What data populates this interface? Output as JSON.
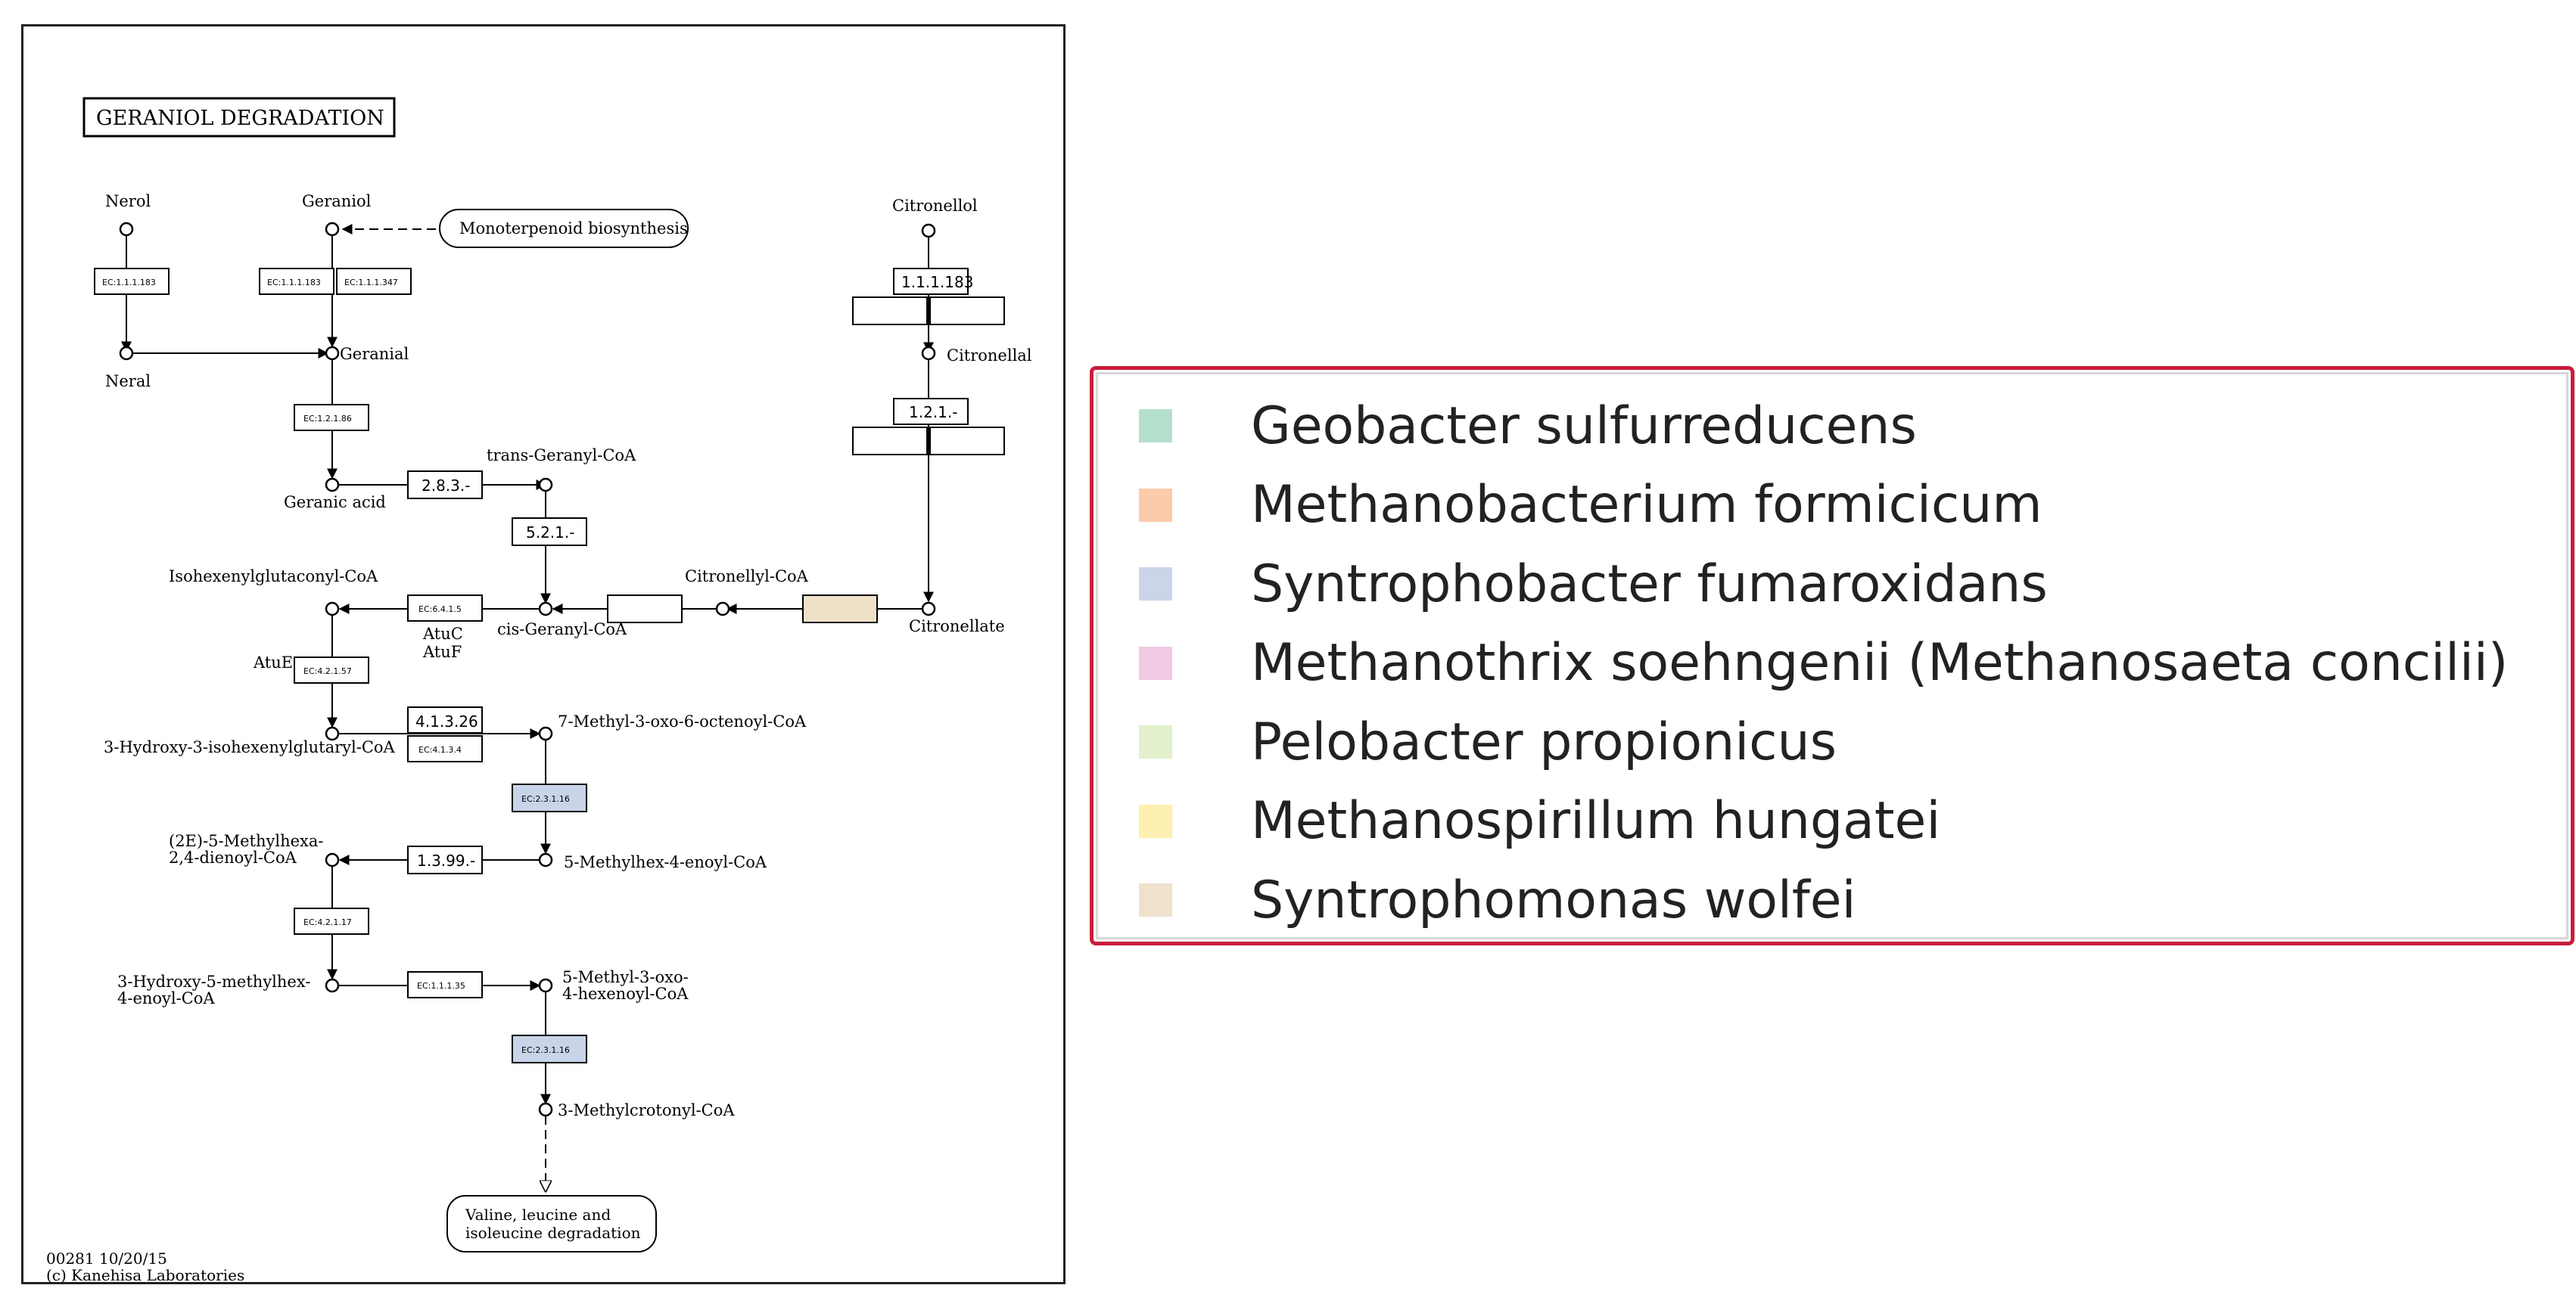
{
  "diagram": {
    "title": "GERANIOL DEGRADATION",
    "footer_line1": "00281 10/20/15",
    "footer_line2": "(c) Kanehisa Laboratories",
    "compounds": {
      "nerol": "Nerol",
      "geraniol": "Geraniol",
      "citronellol": "Citronellol",
      "neral": "Neral",
      "geranial": "Geranial",
      "citronellal": "Citronellal",
      "geranic_acid": "Geranic acid",
      "trans_geranyl_coa": "trans-Geranyl-CoA",
      "isohexenylglutaconyl_coa": "Isohexenylglutaconyl-CoA",
      "citronellyl_coa": "Citronellyl-CoA",
      "cis_geranyl_coa": "cis-Geranyl-CoA",
      "citronellate": "Citronellate",
      "hydroxy_isohexenylglutaryl_coa": "3-Hydroxy-3-isohexenylglutaryl-CoA",
      "methyl_oxo_octenoyl_coa": "7-Methyl-3-oxo-6-octenoyl-CoA",
      "methylhexadienoyl_coa_1": "(2E)-5-Methylhexa-",
      "methylhexadienoyl_coa_2": "2,4-dienoyl-CoA",
      "methylhex_enoyl_coa": "5-Methylhex-4-enoyl-CoA",
      "hydroxy_methylhex_1": "3-Hydroxy-5-methylhex-",
      "hydroxy_methylhex_2": "4-enoyl-CoA",
      "methyl_oxo_hexenoyl_1": "5-Methyl-3-oxo-",
      "methyl_oxo_hexenoyl_2": "4-hexenoyl-CoA",
      "methylcrotonyl_coa": "3-Methylcrotonyl-CoA"
    },
    "gene_labels": {
      "atuc": "AtuC",
      "atuf": "AtuF",
      "atue": "AtuE"
    },
    "pathway_maps": {
      "monoterpenoid": "Monoterpenoid biosynthesis",
      "valine_1": "Valine, leucine and",
      "valine_2": "isoleucine degradation"
    },
    "enzymes": {
      "ec_nerol": "EC:1.1.1.183",
      "ec_geraniol_a": "EC:1.1.1.183",
      "ec_geraniol_b": "EC:1.1.1.347",
      "ec_citronellol": "1.1.1.183",
      "ec_citronellal": "1.2.1.-",
      "ec_geranial": "EC:1.2.1.86",
      "ec_ligase": "2.8.3.-",
      "ec_isomerase": "5.2.1.-",
      "ec_carboxylase": "EC:6.4.1.5",
      "ec_hydratase": "EC:4.2.1.57",
      "ec_lyase_a": "4.1.3.26",
      "ec_lyase_b": "EC:4.1.3.4",
      "ec_acyltransferase_1": "EC:2.3.1.16",
      "ec_oxidoreductase": "1.3.99.-",
      "ec_hydratase_2": "EC:4.2.1.17",
      "ec_dehydrogenase": "EC:1.1.1.35",
      "ec_acyltransferase_2": "EC:2.3.1.16"
    },
    "highlight_colors": {
      "syntrophobacter": "#c8d4e8",
      "syntrophomonas": "#efe0c8"
    }
  },
  "legend": {
    "items": [
      {
        "label": "Geobacter sulfurreducens",
        "color": "#b3dfcc"
      },
      {
        "label": "Methanobacterium formicicum",
        "color": "#fbcbaa"
      },
      {
        "label": "Syntrophobacter fumaroxidans",
        "color": "#cbd5ea"
      },
      {
        "label": "Methanothrix soehngenii (Methanosaeta concilii)",
        "color": "#f2cae4"
      },
      {
        "label": "Pelobacter propionicus",
        "color": "#e2f0cc"
      },
      {
        "label": "Methanospirillum hungatei",
        "color": "#fdf0b0"
      },
      {
        "label": "Syntrophomonas wolfei",
        "color": "#efe1cc"
      }
    ]
  }
}
